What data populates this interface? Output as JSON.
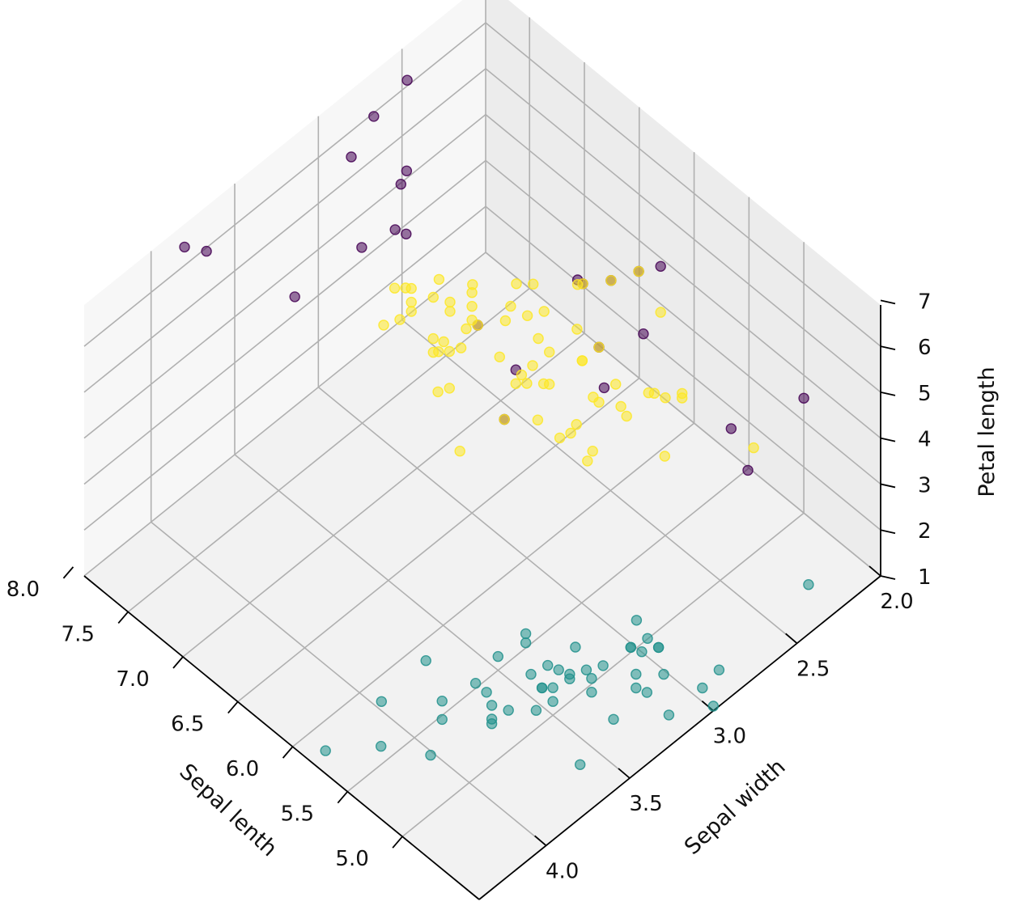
{
  "chart_data": {
    "type": "scatter",
    "projection": "3d",
    "title": "",
    "xlabel": "Sepal lenth",
    "ylabel": "Sepal width",
    "zlabel": "Petal length",
    "xlim": [
      4.3,
      7.9
    ],
    "ylim": [
      2.0,
      4.4
    ],
    "zlim": [
      1.0,
      6.9
    ],
    "x_ticks": [
      "5.0",
      "5.5",
      "6.0",
      "6.5",
      "7.0",
      "7.5",
      "8.0"
    ],
    "y_ticks": [
      "2.0",
      "2.5",
      "3.0",
      "3.5",
      "4.0"
    ],
    "z_ticks": [
      "1",
      "2",
      "3",
      "4",
      "5",
      "6",
      "7"
    ],
    "grid": true,
    "legend": "none",
    "colors": {
      "purple": "#440154",
      "teal": "#21918c",
      "yellow": "#fde725"
    },
    "series": [
      {
        "color": "#440154",
        "points": [
          [
            7.6,
            3.0,
            6.6
          ],
          [
            7.2,
            3.6,
            6.1
          ],
          [
            7.7,
            3.8,
            6.7
          ],
          [
            7.7,
            2.6,
            6.9
          ],
          [
            7.7,
            2.8,
            6.7
          ],
          [
            7.9,
            3.8,
            6.4
          ],
          [
            6.3,
            2.5,
            5.0
          ],
          [
            7.2,
            3.0,
            5.8
          ],
          [
            7.3,
            2.9,
            6.3
          ],
          [
            7.4,
            2.8,
            6.1
          ],
          [
            7.1,
            3.0,
            5.9
          ],
          [
            6.1,
            3.0,
            4.9
          ],
          [
            6.2,
            2.2,
            4.5
          ],
          [
            5.9,
            3.2,
            4.8
          ],
          [
            6.6,
            2.9,
            4.6
          ],
          [
            4.9,
            2.5,
            4.5
          ],
          [
            5.7,
            2.5,
            5.0
          ],
          [
            5.6,
            2.8,
            4.9
          ],
          [
            5.8,
            2.7,
            5.1
          ],
          [
            6.0,
            2.2,
            5.0
          ],
          [
            6.3,
            2.3,
            4.4
          ],
          [
            4.9,
            2.4,
            3.3
          ],
          [
            5.0,
            2.0,
            3.5
          ],
          [
            7.2,
            3.2,
            6.0
          ],
          [
            6.1,
            2.6,
            5.6
          ]
        ]
      },
      {
        "color": "#fde725",
        "points": [
          [
            6.4,
            3.2,
            5.3
          ],
          [
            6.3,
            2.8,
            5.1
          ],
          [
            6.9,
            3.1,
            5.4
          ],
          [
            6.7,
            3.1,
            5.6
          ],
          [
            6.8,
            3.0,
            5.5
          ],
          [
            6.5,
            3.0,
            5.2
          ],
          [
            6.2,
            3.4,
            5.4
          ],
          [
            6.4,
            3.1,
            5.5
          ],
          [
            6.3,
            3.3,
            6.0
          ],
          [
            6.7,
            3.3,
            5.7
          ],
          [
            6.4,
            2.8,
            5.6
          ],
          [
            6.0,
            3.0,
            4.8
          ],
          [
            6.9,
            3.2,
            5.7
          ],
          [
            5.8,
            2.8,
            5.1
          ],
          [
            6.5,
            3.2,
            5.1
          ],
          [
            6.8,
            3.2,
            5.9
          ],
          [
            6.3,
            2.9,
            5.6
          ],
          [
            6.1,
            2.8,
            4.7
          ],
          [
            6.7,
            3.0,
            5.2
          ],
          [
            6.0,
            2.9,
            4.5
          ],
          [
            5.7,
            2.8,
            4.5
          ],
          [
            6.6,
            3.0,
            4.4
          ],
          [
            6.1,
            2.9,
            4.7
          ],
          [
            5.6,
            2.9,
            3.6
          ],
          [
            6.7,
            3.1,
            4.4
          ],
          [
            5.6,
            3.0,
            4.5
          ],
          [
            5.9,
            3.0,
            4.2
          ],
          [
            6.2,
            2.9,
            4.3
          ],
          [
            5.7,
            3.0,
            4.2
          ],
          [
            5.5,
            2.6,
            4.4
          ],
          [
            6.1,
            3.0,
            4.6
          ],
          [
            5.8,
            2.6,
            4.0
          ],
          [
            5.0,
            2.3,
            3.3
          ],
          [
            5.6,
            2.7,
            4.2
          ],
          [
            5.7,
            2.9,
            4.2
          ],
          [
            6.2,
            2.8,
            4.8
          ],
          [
            6.4,
            2.9,
            4.3
          ],
          [
            6.3,
            2.5,
            4.9
          ],
          [
            6.6,
            2.9,
            4.6
          ],
          [
            6.0,
            2.7,
            5.1
          ],
          [
            5.4,
            3.0,
            4.5
          ],
          [
            6.0,
            3.4,
            4.5
          ],
          [
            6.7,
            3.1,
            4.7
          ],
          [
            6.3,
            2.3,
            4.4
          ],
          [
            5.5,
            2.5,
            4.0
          ],
          [
            5.5,
            2.4,
            3.8
          ],
          [
            5.5,
            2.4,
            3.7
          ],
          [
            5.8,
            2.7,
            3.9
          ],
          [
            6.7,
            3.0,
            5.0
          ],
          [
            5.9,
            3.2,
            4.8
          ],
          [
            6.1,
            2.8,
            4.0
          ],
          [
            6.9,
            3.1,
            4.9
          ],
          [
            7.0,
            3.2,
            4.7
          ],
          [
            6.5,
            2.8,
            4.6
          ],
          [
            5.7,
            2.6,
            3.5
          ],
          [
            6.0,
            2.2,
            4.0
          ],
          [
            6.2,
            2.2,
            4.5
          ],
          [
            5.6,
            2.5,
            3.9
          ],
          [
            6.8,
            2.8,
            4.8
          ],
          [
            5.2,
            2.7,
            3.9
          ],
          [
            6.4,
            2.7,
            5.3
          ],
          [
            6.5,
            3.0,
            5.5
          ],
          [
            6.9,
            3.1,
            5.1
          ],
          [
            5.8,
            2.7,
            5.1
          ],
          [
            6.3,
            2.7,
            4.9
          ],
          [
            6.5,
            3.0,
            5.8
          ],
          [
            6.4,
            3.2,
            4.5
          ],
          [
            6.1,
            2.6,
            5.6
          ],
          [
            5.8,
            2.8,
            5.1
          ]
        ]
      },
      {
        "color": "#21918c",
        "points": [
          [
            5.1,
            3.5,
            1.4
          ],
          [
            4.9,
            3.0,
            1.4
          ],
          [
            4.7,
            3.2,
            1.3
          ],
          [
            4.6,
            3.1,
            1.5
          ],
          [
            5.0,
            3.6,
            1.4
          ],
          [
            5.4,
            3.9,
            1.7
          ],
          [
            4.6,
            3.4,
            1.4
          ],
          [
            5.0,
            3.4,
            1.5
          ],
          [
            4.4,
            2.9,
            1.4
          ],
          [
            4.9,
            3.1,
            1.5
          ],
          [
            5.4,
            3.7,
            1.5
          ],
          [
            4.8,
            3.4,
            1.6
          ],
          [
            4.8,
            3.0,
            1.4
          ],
          [
            4.3,
            3.0,
            1.1
          ],
          [
            5.8,
            4.0,
            1.2
          ],
          [
            5.7,
            4.4,
            1.5
          ],
          [
            5.4,
            3.9,
            1.3
          ],
          [
            5.1,
            3.5,
            1.4
          ],
          [
            5.7,
            3.8,
            1.7
          ],
          [
            5.1,
            3.8,
            1.5
          ],
          [
            5.4,
            3.4,
            1.7
          ],
          [
            5.1,
            3.7,
            1.5
          ],
          [
            4.6,
            3.6,
            1.0
          ],
          [
            5.1,
            3.3,
            1.7
          ],
          [
            4.8,
            3.4,
            1.9
          ],
          [
            5.0,
            3.0,
            1.6
          ],
          [
            5.0,
            3.4,
            1.6
          ],
          [
            5.2,
            3.5,
            1.5
          ],
          [
            5.2,
            3.4,
            1.4
          ],
          [
            4.7,
            3.2,
            1.6
          ],
          [
            4.8,
            3.1,
            1.6
          ],
          [
            5.4,
            3.4,
            1.5
          ],
          [
            5.2,
            4.1,
            1.5
          ],
          [
            5.5,
            4.2,
            1.4
          ],
          [
            4.9,
            3.1,
            1.5
          ],
          [
            5.0,
            3.2,
            1.2
          ],
          [
            5.5,
            3.5,
            1.3
          ],
          [
            4.4,
            3.0,
            1.3
          ],
          [
            5.1,
            3.4,
            1.5
          ],
          [
            5.0,
            3.5,
            1.3
          ],
          [
            4.5,
            2.3,
            1.3
          ],
          [
            4.4,
            3.2,
            1.3
          ],
          [
            5.0,
            3.5,
            1.6
          ],
          [
            5.1,
            3.8,
            1.9
          ],
          [
            4.8,
            3.0,
            1.4
          ],
          [
            5.1,
            3.8,
            1.6
          ],
          [
            4.6,
            3.2,
            1.4
          ],
          [
            5.3,
            3.7,
            1.5
          ],
          [
            5.0,
            3.3,
            1.4
          ]
        ]
      }
    ]
  }
}
